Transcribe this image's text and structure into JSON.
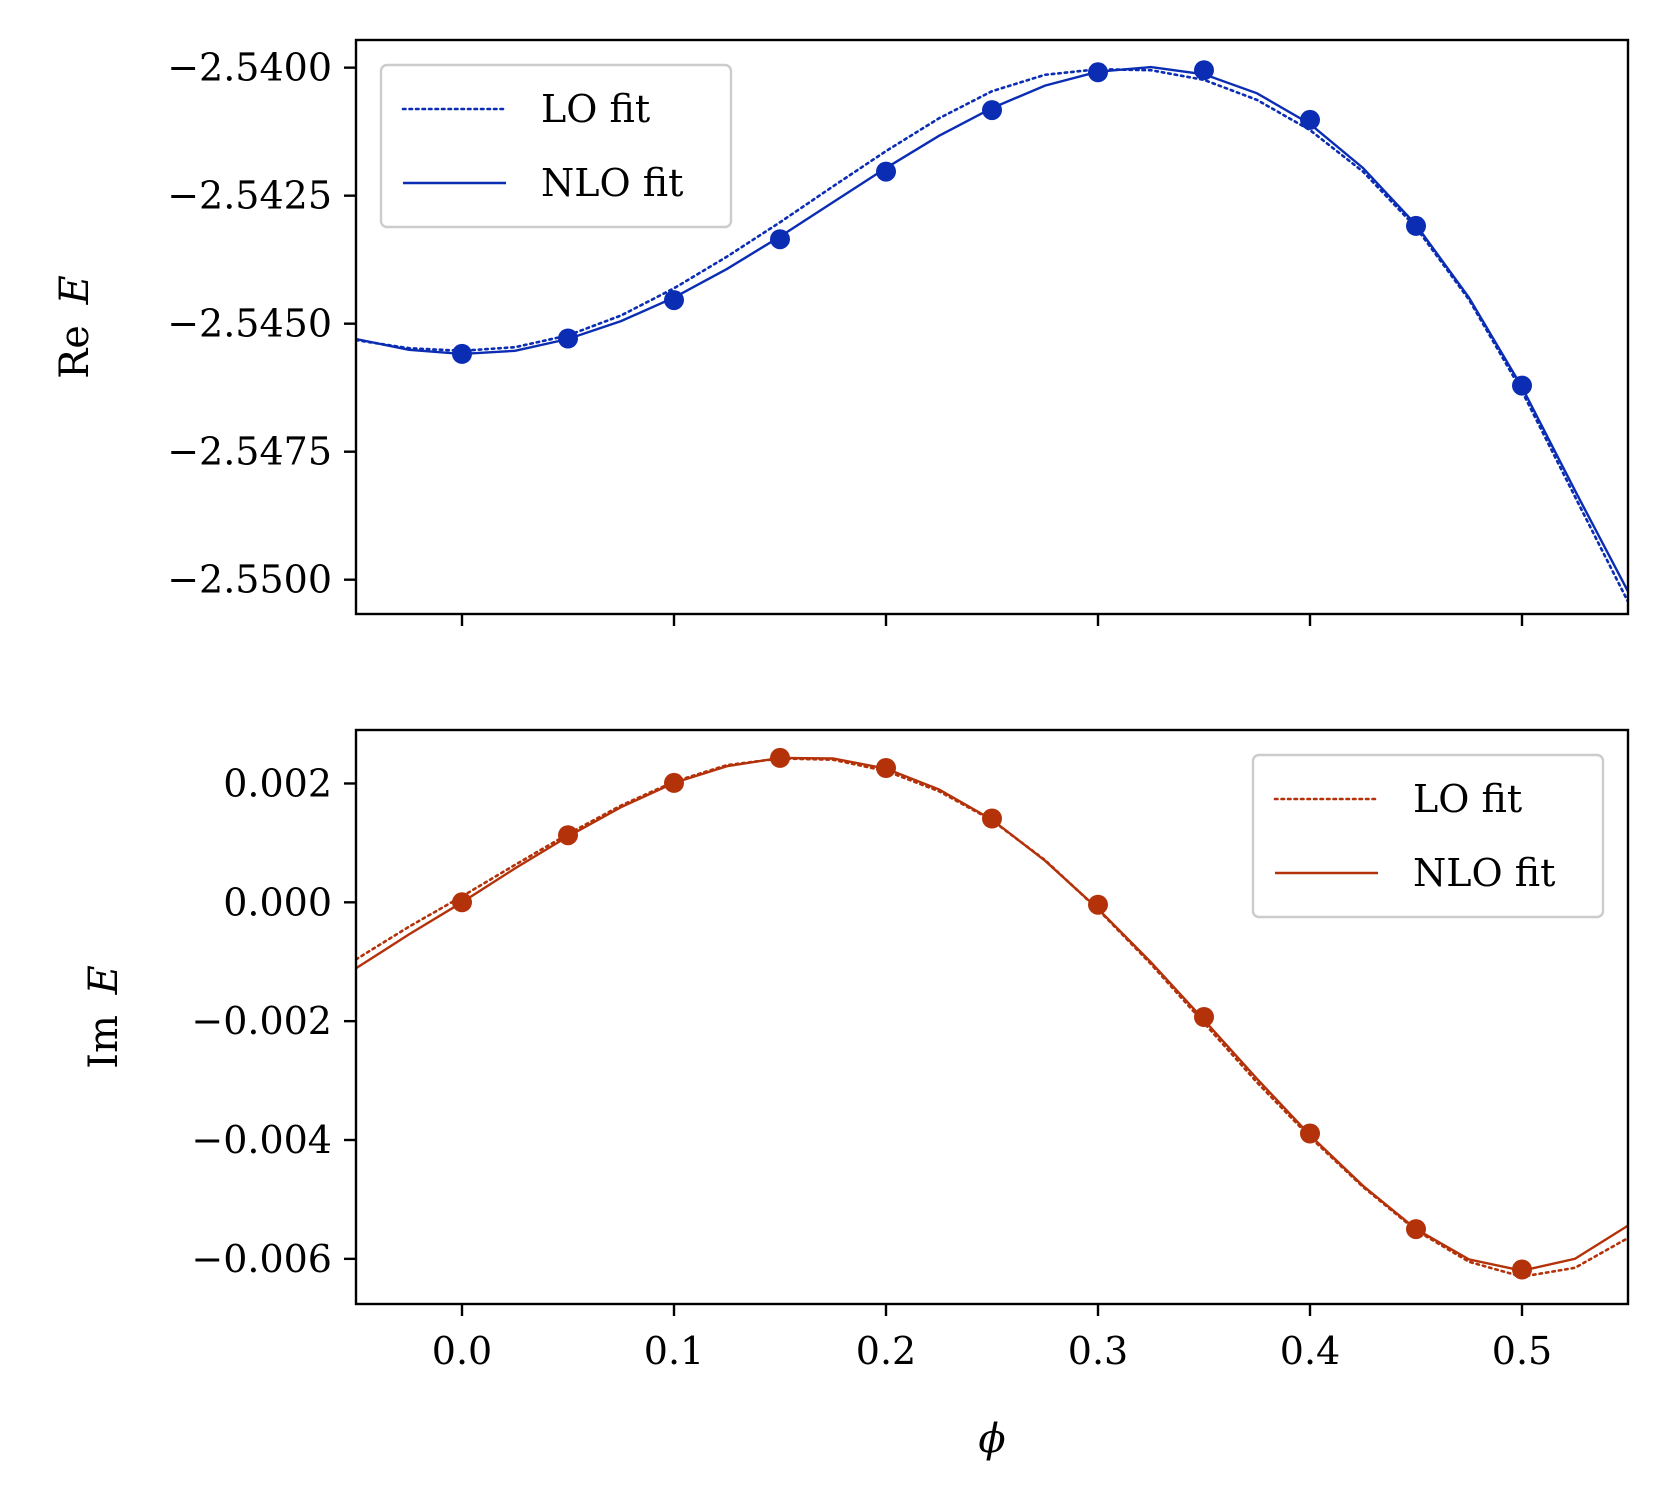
{
  "chart_data": [
    {
      "type": "line",
      "ylabel": "Re E",
      "ylabel_prefix": "Re",
      "ylabel_var": "E",
      "xlim": [
        -0.05,
        0.55
      ],
      "ylim": [
        -2.55067,
        -2.53946
      ],
      "yticks": [
        -2.55,
        -2.5475,
        -2.545,
        -2.5425,
        -2.54
      ],
      "ytick_labels": [
        "−2.5500",
        "−2.5475",
        "−2.5450",
        "−2.5425",
        "−2.5400"
      ],
      "xticks": [
        0.0,
        0.1,
        0.2,
        0.3,
        0.4,
        0.5
      ],
      "xtick_labels": [],
      "grid": false,
      "legend_position": "top-left",
      "color": "#0a2db4",
      "points": {
        "x": [
          0.0,
          0.05,
          0.1,
          0.15,
          0.2,
          0.25,
          0.3,
          0.35,
          0.4,
          0.45,
          0.5
        ],
        "y": [
          -2.54559,
          -2.54529,
          -2.54454,
          -2.54335,
          -2.54203,
          -2.54083,
          -2.54009,
          -2.54005,
          -2.54102,
          -2.54309,
          -2.54621
        ]
      },
      "series": [
        {
          "name": "LO fit",
          "style": "dotted",
          "x": [
            -0.05,
            -0.025,
            0.0,
            0.025,
            0.05,
            0.075,
            0.1,
            0.125,
            0.15,
            0.175,
            0.2,
            0.225,
            0.25,
            0.275,
            0.3,
            0.325,
            0.35,
            0.375,
            0.4,
            0.425,
            0.45,
            0.475,
            0.5,
            0.525,
            0.55
          ],
          "y": [
            -2.54532,
            -2.54548,
            -2.54553,
            -2.54546,
            -2.54523,
            -2.54484,
            -2.54431,
            -2.54369,
            -2.54302,
            -2.54232,
            -2.54163,
            -2.54099,
            -2.54046,
            -2.54014,
            -2.54003,
            -2.54005,
            -2.54024,
            -2.54063,
            -2.54122,
            -2.54203,
            -2.54312,
            -2.54453,
            -2.54632,
            -2.54838,
            -2.55043
          ]
        },
        {
          "name": "NLO fit",
          "style": "solid",
          "x": [
            -0.05,
            -0.025,
            0.0,
            0.025,
            0.05,
            0.075,
            0.1,
            0.125,
            0.15,
            0.175,
            0.2,
            0.225,
            0.25,
            0.275,
            0.3,
            0.325,
            0.35,
            0.375,
            0.4,
            0.425,
            0.45,
            0.475,
            0.5,
            0.525,
            0.55
          ],
          "y": [
            -2.5453,
            -2.54551,
            -2.54559,
            -2.54553,
            -2.5453,
            -2.54495,
            -2.54449,
            -2.54393,
            -2.5433,
            -2.54263,
            -2.54196,
            -2.54133,
            -2.54079,
            -2.54035,
            -2.54008,
            -2.53999,
            -2.54013,
            -2.5405,
            -2.5411,
            -2.54196,
            -2.54307,
            -2.54449,
            -2.54624,
            -2.54826,
            -2.55023
          ]
        }
      ]
    },
    {
      "type": "line",
      "ylabel": "Im E",
      "ylabel_prefix": "Im",
      "ylabel_var": "E",
      "xlabel": "ϕ",
      "xlim": [
        -0.05,
        0.55
      ],
      "ylim": [
        -0.00676,
        0.0029
      ],
      "yticks": [
        -0.006,
        -0.004,
        -0.002,
        0.0,
        0.002
      ],
      "ytick_labels": [
        "−0.006",
        "−0.004",
        "−0.002",
        "0.000",
        "0.002"
      ],
      "xticks": [
        0.0,
        0.1,
        0.2,
        0.3,
        0.4,
        0.5
      ],
      "xtick_labels": [
        "0.0",
        "0.1",
        "0.2",
        "0.3",
        "0.4",
        "0.5"
      ],
      "grid": false,
      "legend_position": "top-right",
      "color": "#b4320a",
      "points": {
        "x": [
          0.0,
          0.05,
          0.1,
          0.15,
          0.2,
          0.25,
          0.3,
          0.35,
          0.4,
          0.45,
          0.5
        ],
        "y": [
          0.0,
          0.00113,
          0.00201,
          0.00243,
          0.00226,
          0.00141,
          -4e-05,
          -0.00193,
          -0.00389,
          -0.0055,
          -0.00618
        ]
      },
      "series": [
        {
          "name": "LO fit",
          "style": "dotted",
          "x": [
            -0.05,
            -0.025,
            0.0,
            0.025,
            0.05,
            0.075,
            0.1,
            0.125,
            0.15,
            0.175,
            0.2,
            0.225,
            0.25,
            0.275,
            0.3,
            0.325,
            0.35,
            0.375,
            0.4,
            0.425,
            0.45,
            0.475,
            0.5,
            0.525,
            0.55
          ],
          "y": [
            -0.00096,
            -0.00041,
            0.0001,
            0.00063,
            0.00115,
            0.00163,
            0.00203,
            0.00231,
            0.00242,
            0.0024,
            0.00221,
            0.00187,
            0.00138,
            0.00071,
            -0.00012,
            -0.00104,
            -0.00203,
            -0.00303,
            -0.00395,
            -0.00479,
            -0.00552,
            -0.00605,
            -0.0063,
            -0.00615,
            -0.00565
          ]
        },
        {
          "name": "NLO fit",
          "style": "solid",
          "x": [
            -0.05,
            -0.025,
            0.0,
            0.025,
            0.05,
            0.075,
            0.1,
            0.125,
            0.15,
            0.175,
            0.2,
            0.225,
            0.25,
            0.275,
            0.3,
            0.325,
            0.35,
            0.375,
            0.4,
            0.425,
            0.45,
            0.475,
            0.5,
            0.525,
            0.55
          ],
          "y": [
            -0.00111,
            -0.00054,
            0.0,
            0.00057,
            0.00111,
            0.0016,
            0.00201,
            0.00229,
            0.00243,
            0.00242,
            0.00225,
            0.0019,
            0.00139,
            0.0007,
            -0.00011,
            -0.00101,
            -0.00198,
            -0.00297,
            -0.00392,
            -0.00477,
            -0.0055,
            -0.00601,
            -0.0062,
            -0.006,
            -0.00544
          ]
        }
      ]
    }
  ]
}
